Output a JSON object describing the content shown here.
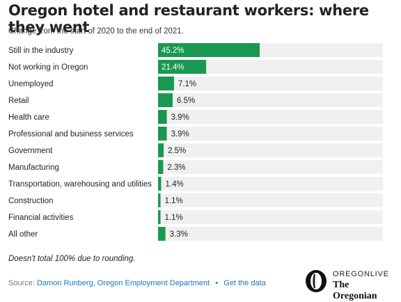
{
  "header": {
    "title": "Oregon hotel and restaurant workers: where they went",
    "subtitle": "Change from the start of 2020 to the end of 2021."
  },
  "chart_data": {
    "type": "bar",
    "orientation": "horizontal",
    "categories": [
      "Still in the industry",
      "Not working in Oregon",
      "Unemployed",
      "Retail",
      "Health care",
      "Professional and business services",
      "Government",
      "Manufacturing",
      "Transportation, warehousing and utilities",
      "Construction",
      "Financial activities",
      "All other"
    ],
    "values": [
      45.2,
      21.4,
      7.1,
      6.5,
      3.9,
      3.9,
      2.5,
      2.3,
      1.4,
      1.1,
      1.1,
      3.3
    ],
    "value_labels": [
      "45.2%",
      "21.4%",
      "7.1%",
      "6.5%",
      "3.9%",
      "3.9%",
      "2.5%",
      "2.3%",
      "1.4%",
      "1.1%",
      "1.1%",
      "3.3%"
    ],
    "xlim": [
      0,
      100
    ],
    "grid": false,
    "legend": "none",
    "colors": {
      "bar": "#1a9850",
      "track": "#f0f0f0",
      "label_inside": "#ffffff",
      "label_outside": "#222222"
    }
  },
  "footer": {
    "note": "Doesn't total 100% due to rounding.",
    "source_prefix": "Source:",
    "source_link": "Damon Runberg, Oregon Employment Department",
    "separator": "•",
    "data_link": "Get the data"
  },
  "logo": {
    "top_text": "OREGONLIVE",
    "bottom_text": "The Oregonian",
    "icon": "oregonian-o-logo-icon"
  }
}
